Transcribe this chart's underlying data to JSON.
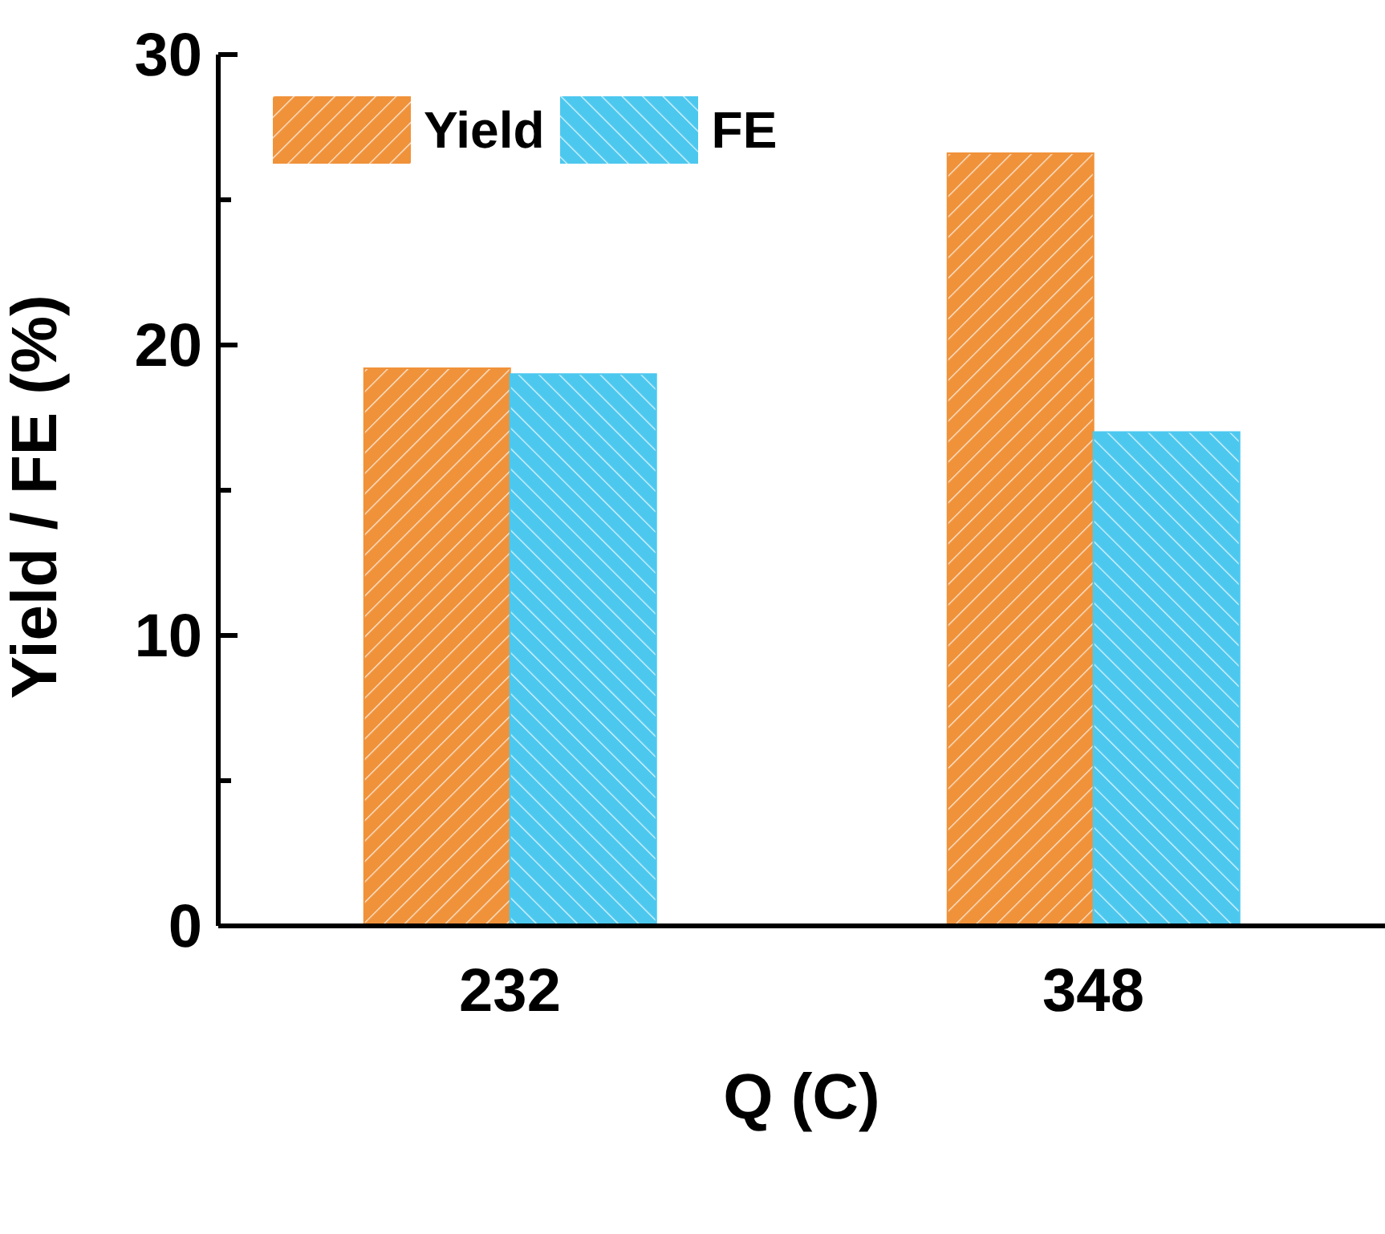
{
  "chart_data": {
    "type": "bar",
    "xlabel": "Q (C)",
    "ylabel": "Yield / FE (%)",
    "categories": [
      "232",
      "348"
    ],
    "series": [
      {
        "name": "Yield",
        "color": "#f0923a",
        "values": [
          19.2,
          26.6
        ]
      },
      {
        "name": "FE",
        "color": "#4cc8ef",
        "values": [
          19.0,
          17.0
        ]
      }
    ],
    "ylim": [
      0,
      30
    ],
    "yticks": [
      0,
      {
        "value": 5,
        "label": null
      },
      10,
      {
        "value": 15,
        "label": null
      },
      20,
      {
        "value": 25,
        "label": null
      },
      30
    ],
    "grid": false,
    "legend": "top left"
  }
}
